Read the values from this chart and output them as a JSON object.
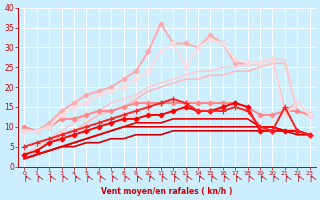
{
  "xlabel": "Vent moyen/en rafales ( kn/h )",
  "xlim": [
    -0.5,
    23.5
  ],
  "ylim": [
    0,
    40
  ],
  "yticks": [
    0,
    5,
    10,
    15,
    20,
    25,
    30,
    35,
    40
  ],
  "xticks": [
    0,
    1,
    2,
    3,
    4,
    5,
    6,
    7,
    8,
    9,
    10,
    11,
    12,
    13,
    14,
    15,
    16,
    17,
    18,
    19,
    20,
    21,
    22,
    23
  ],
  "bg_color": "#cceeff",
  "grid_color": "#ffffff",
  "series": [
    {
      "x": [
        0,
        1,
        2,
        3,
        4,
        5,
        6,
        7,
        8,
        9,
        10,
        11,
        12,
        13,
        14,
        15,
        16,
        17,
        18,
        19,
        20,
        21,
        22,
        23
      ],
      "y": [
        2,
        3,
        4,
        5,
        5,
        6,
        6,
        7,
        7,
        8,
        8,
        8,
        9,
        9,
        9,
        9,
        9,
        9,
        9,
        9,
        9,
        9,
        8,
        8
      ],
      "color": "#cc0000",
      "lw": 1.2,
      "marker": null,
      "ms": 0,
      "zorder": 3
    },
    {
      "x": [
        0,
        1,
        2,
        3,
        4,
        5,
        6,
        7,
        8,
        9,
        10,
        11,
        12,
        13,
        14,
        15,
        16,
        17,
        18,
        19,
        20,
        21,
        22,
        23
      ],
      "y": [
        2,
        3,
        4,
        5,
        6,
        7,
        8,
        9,
        10,
        10,
        10,
        10,
        10,
        10,
        10,
        10,
        10,
        10,
        10,
        10,
        10,
        9,
        9,
        8
      ],
      "color": "#dd0000",
      "lw": 1.2,
      "marker": null,
      "ms": 0,
      "zorder": 3
    },
    {
      "x": [
        0,
        1,
        2,
        3,
        4,
        5,
        6,
        7,
        8,
        9,
        10,
        11,
        12,
        13,
        14,
        15,
        16,
        17,
        18,
        19,
        20,
        21,
        22,
        23
      ],
      "y": [
        2,
        3,
        4,
        5,
        6,
        7,
        8,
        9,
        10,
        11,
        11,
        11,
        12,
        12,
        12,
        12,
        12,
        12,
        12,
        10,
        10,
        9,
        9,
        8
      ],
      "color": "#ee0000",
      "lw": 1.2,
      "marker": null,
      "ms": 0,
      "zorder": 3
    },
    {
      "x": [
        0,
        1,
        2,
        3,
        4,
        5,
        6,
        7,
        8,
        9,
        10,
        11,
        12,
        13,
        14,
        15,
        16,
        17,
        18,
        19,
        20,
        21,
        22,
        23
      ],
      "y": [
        3,
        4,
        6,
        7,
        8,
        9,
        10,
        11,
        12,
        12,
        13,
        13,
        14,
        15,
        14,
        14,
        15,
        16,
        15,
        9,
        9,
        9,
        9,
        8
      ],
      "color": "#ff0000",
      "lw": 1.4,
      "marker": "D",
      "ms": 2.5,
      "zorder": 5
    },
    {
      "x": [
        0,
        1,
        2,
        3,
        4,
        5,
        6,
        7,
        8,
        9,
        10,
        11,
        12,
        13,
        14,
        15,
        16,
        17,
        18,
        19,
        20,
        21,
        22,
        23
      ],
      "y": [
        5,
        6,
        7,
        8,
        9,
        10,
        11,
        12,
        13,
        14,
        15,
        16,
        17,
        16,
        14,
        14,
        14,
        15,
        14,
        10,
        9,
        15,
        9,
        8
      ],
      "color": "#ff2222",
      "lw": 1.4,
      "marker": "+",
      "ms": 4,
      "zorder": 5
    },
    {
      "x": [
        0,
        1,
        2,
        3,
        4,
        5,
        6,
        7,
        8,
        9,
        10,
        11,
        12,
        13,
        14,
        15,
        16,
        17,
        18,
        19,
        20,
        21,
        22,
        23
      ],
      "y": [
        10,
        9,
        10,
        12,
        12,
        13,
        14,
        14,
        15,
        16,
        16,
        16,
        16,
        16,
        16,
        16,
        16,
        16,
        15,
        13,
        13,
        14,
        14,
        13
      ],
      "color": "#ff8888",
      "lw": 1.4,
      "marker": "D",
      "ms": 2.5,
      "zorder": 4
    },
    {
      "x": [
        0,
        1,
        2,
        3,
        4,
        5,
        6,
        7,
        8,
        9,
        10,
        11,
        12,
        13,
        14,
        15,
        16,
        17,
        18,
        19,
        20,
        21,
        22,
        23
      ],
      "y": [
        3,
        4,
        6,
        8,
        9,
        11,
        13,
        14,
        15,
        17,
        19,
        20,
        21,
        22,
        22,
        23,
        23,
        24,
        24,
        25,
        26,
        26,
        14,
        13
      ],
      "color": "#ffbbbb",
      "lw": 1.2,
      "marker": null,
      "ms": 0,
      "zorder": 3
    },
    {
      "x": [
        0,
        1,
        2,
        3,
        4,
        5,
        6,
        7,
        8,
        9,
        10,
        11,
        12,
        13,
        14,
        15,
        16,
        17,
        18,
        19,
        20,
        21,
        22,
        23
      ],
      "y": [
        3,
        5,
        7,
        9,
        11,
        13,
        14,
        16,
        17,
        18,
        20,
        21,
        22,
        23,
        24,
        24,
        25,
        25,
        26,
        26,
        27,
        27,
        14,
        13
      ],
      "color": "#ffcccc",
      "lw": 1.2,
      "marker": null,
      "ms": 0,
      "zorder": 3
    },
    {
      "x": [
        0,
        1,
        2,
        3,
        4,
        5,
        6,
        7,
        8,
        9,
        10,
        11,
        12,
        13,
        14,
        15,
        16,
        17,
        18,
        19,
        20,
        21,
        22,
        23
      ],
      "y": [
        9,
        9,
        11,
        14,
        16,
        18,
        19,
        20,
        22,
        24,
        29,
        36,
        31,
        31,
        30,
        33,
        31,
        26,
        26,
        26,
        27,
        14,
        16,
        13
      ],
      "color": "#ffaaaa",
      "lw": 1.4,
      "marker": "D",
      "ms": 2.5,
      "zorder": 4
    },
    {
      "x": [
        0,
        1,
        2,
        3,
        4,
        5,
        6,
        7,
        8,
        9,
        10,
        11,
        12,
        13,
        14,
        15,
        16,
        17,
        18,
        19,
        20,
        21,
        22,
        23
      ],
      "y": [
        9,
        9,
        10,
        13,
        15,
        16,
        18,
        19,
        20,
        22,
        24,
        29,
        31,
        25,
        30,
        32,
        31,
        27,
        26,
        26,
        27,
        13,
        16,
        13
      ],
      "color": "#ffdddd",
      "lw": 1.4,
      "marker": "D",
      "ms": 2.5,
      "zorder": 4
    }
  ]
}
